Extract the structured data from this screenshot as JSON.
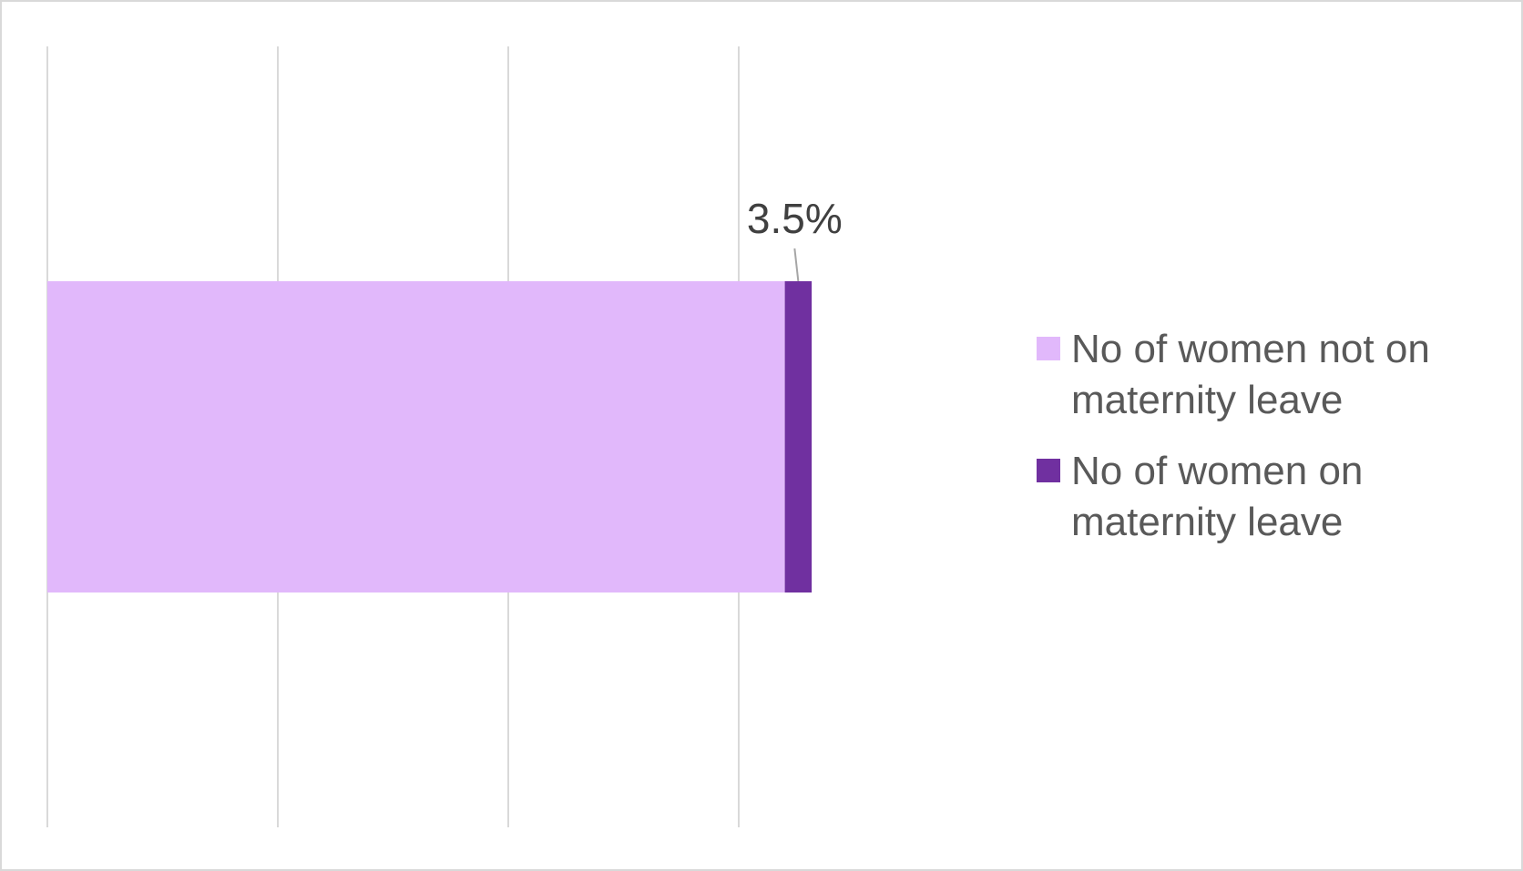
{
  "chart_data": {
    "type": "bar",
    "orientation": "horizontal",
    "stacked": true,
    "title": "",
    "xlabel": "",
    "ylabel": "",
    "grid": true,
    "legend_placement": "right",
    "series": [
      {
        "name": "No of women not on maternity leave",
        "value": 0.96,
        "color": "#E1B8FB"
      },
      {
        "name": "No of women on maternity leave",
        "value": 0.035,
        "color": "#7030A0",
        "data_label": "3.5%"
      }
    ],
    "xlim": [
      0,
      1.2
    ],
    "gridline_values": [
      0,
      0.3,
      0.6,
      0.9,
      1.2
    ]
  }
}
